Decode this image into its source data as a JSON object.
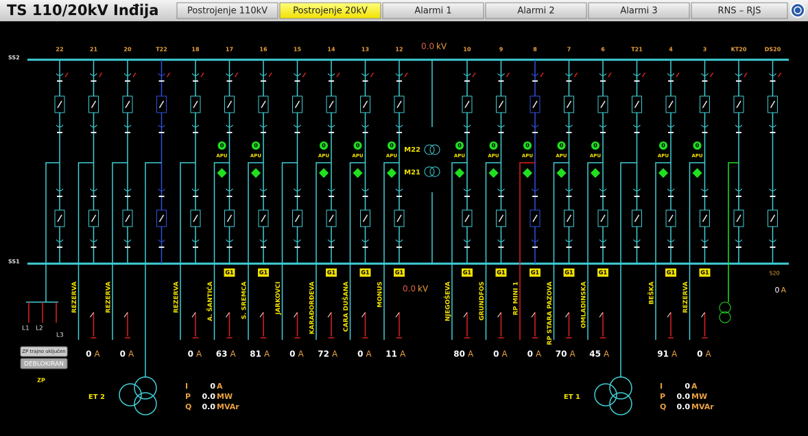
{
  "header": {
    "title": "TS 110/20kV Inđija",
    "tabs": [
      "Postrojenje 110kV",
      "Postrojenje 20kV",
      "Alarmi 1",
      "Alarmi 2",
      "Alarmi 3",
      "RNS – RJS"
    ]
  },
  "busbars": {
    "upper": "SS2",
    "lower": "SS1"
  },
  "voltage_top": {
    "value": "0.0",
    "unit": "kV"
  },
  "voltage_mid": {
    "value": "0.0",
    "unit": "kV"
  },
  "transformer_bay": {
    "upper": "M22",
    "lower": "M21"
  },
  "bays": [
    {
      "label": "22"
    },
    {
      "label": "21",
      "name": "REZERVA",
      "current": 0,
      "unit": "A"
    },
    {
      "label": "20",
      "name": "REZERVA",
      "current": 0,
      "unit": "A"
    },
    {
      "label": "T22"
    },
    {
      "label": "18",
      "name": "REZERVA",
      "current": 0,
      "unit": "A"
    },
    {
      "label": "17",
      "name": "A. ŠANTIĆA",
      "current": 63,
      "unit": "A",
      "apu": "APU",
      "status": "0",
      "tag": "G1"
    },
    {
      "label": "16",
      "name": "S. SREMCA",
      "current": 81,
      "unit": "A",
      "apu": "APU",
      "status": "0",
      "tag": "G1"
    },
    {
      "label": "15",
      "name": "JARKOVCI",
      "current": 0,
      "unit": "A"
    },
    {
      "label": "14",
      "name": "KARAĐORĐEVA",
      "current": 72,
      "unit": "A",
      "apu": "APU",
      "status": "0",
      "tag": "G1"
    },
    {
      "label": "13",
      "name": "CARA DUŠANA",
      "current": 0,
      "unit": "A",
      "apu": "APU",
      "status": "0",
      "tag": "G1"
    },
    {
      "label": "12",
      "name": "MONUS",
      "current": 11,
      "unit": "A",
      "apu": "APU",
      "status": "0",
      "tag": "G1"
    },
    {
      "label": "10",
      "name": "NJEGOŠEVA",
      "current": 80,
      "unit": "A",
      "apu": "APU",
      "status": "0",
      "tag": "G1"
    },
    {
      "label": "9",
      "name": "GRUNDFOS",
      "current": 0,
      "unit": "A",
      "apu": "APU",
      "status": "0",
      "tag": "G1"
    },
    {
      "label": "8",
      "name": "RP MINI 1",
      "current": 0,
      "unit": "A",
      "apu": "APU",
      "status": "0",
      "tag": "G1"
    },
    {
      "label": "7",
      "name": "RP STARA PAZOVA",
      "current": 70,
      "unit": "A",
      "apu": "APU",
      "status": "0",
      "tag": "G1"
    },
    {
      "label": "6",
      "name": "OMLADINSKA",
      "current": 45,
      "unit": "A",
      "apu": "APU",
      "status": "0",
      "tag": "G1"
    },
    {
      "label": "T21"
    },
    {
      "label": "4",
      "name": "BEŠKA",
      "current": 91,
      "unit": "A",
      "apu": "APU",
      "status": "0",
      "tag": "G1"
    },
    {
      "label": "3",
      "name": "REZERVA",
      "current": 0,
      "unit": "A",
      "apu": "APU",
      "status": "0",
      "tag": "G1"
    },
    {
      "label": "KT20"
    },
    {
      "label": "DS20",
      "name": "S20",
      "current": 0,
      "unit": "A"
    }
  ],
  "zp": {
    "button_on": "ZP trajno uključen",
    "button_state": "DEBLOKIRAN",
    "label": "ZP",
    "phases": [
      "L1",
      "L2",
      "L3"
    ]
  },
  "et2": {
    "name": "ET 2",
    "rows": [
      {
        "symbol": "I",
        "value": "0",
        "unit": "A"
      },
      {
        "symbol": "P",
        "value": "0.0",
        "unit": "MW"
      },
      {
        "symbol": "Q",
        "value": "0.0",
        "unit": "MVAr"
      }
    ]
  },
  "et1": {
    "name": "ET 1",
    "rows": [
      {
        "symbol": "I",
        "value": "0",
        "unit": "A"
      },
      {
        "symbol": "P",
        "value": "0.0",
        "unit": "MW"
      },
      {
        "symbol": "Q",
        "value": "0.0",
        "unit": "MVAr"
      }
    ]
  }
}
